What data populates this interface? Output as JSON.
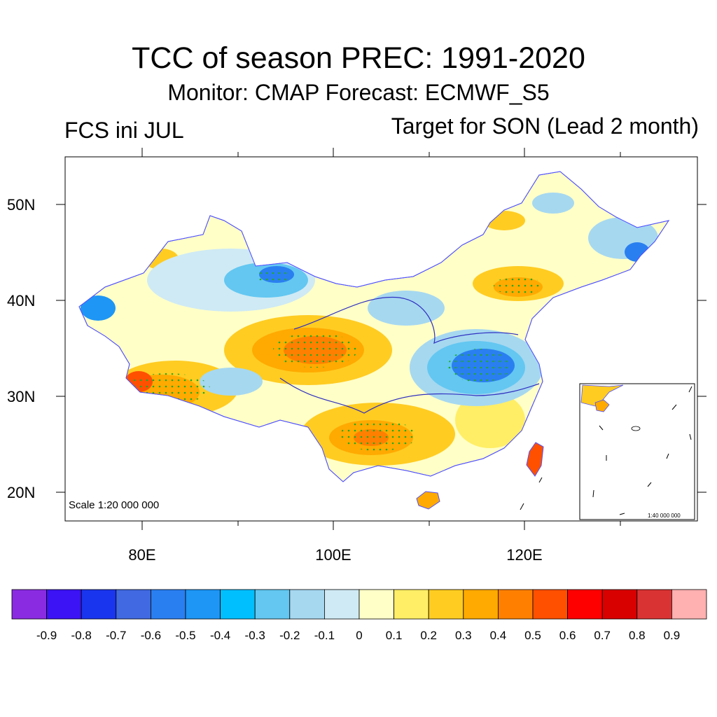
{
  "title": "TCC of season PREC: 1991-2020",
  "subtitle": "Monitor: CMAP   Forecast: ECMWF_S5",
  "left_label": "FCS ini JUL",
  "right_label": "Target for SON (Lead 2 month)",
  "scale_main": "Scale 1:20 000 000",
  "scale_inset": "1:40 000 000",
  "axes": {
    "lat_labels": [
      "50N",
      "40N",
      "30N",
      "20N"
    ],
    "lon_labels": [
      "80E",
      "100E",
      "120E"
    ]
  },
  "colorbar": {
    "colors": [
      "#8a2be2",
      "#3b13f5",
      "#1a35ee",
      "#4169e1",
      "#2a7ff0",
      "#1e96f5",
      "#00bfff",
      "#63c7f1",
      "#a6d8f0",
      "#cfeaf5",
      "#ffffc8",
      "#ffee66",
      "#ffcc22",
      "#ffaa00",
      "#ff8000",
      "#ff5000",
      "#ff0000",
      "#d90000",
      "#d93333",
      "#ffb0b0"
    ],
    "labels": [
      "-0.9",
      "-0.8",
      "-0.7",
      "-0.6",
      "-0.5",
      "-0.4",
      "-0.3",
      "-0.2",
      "-0.1",
      "0",
      "0.1",
      "0.2",
      "0.3",
      "0.4",
      "0.5",
      "0.6",
      "0.7",
      "0.8",
      "0.9"
    ]
  }
}
